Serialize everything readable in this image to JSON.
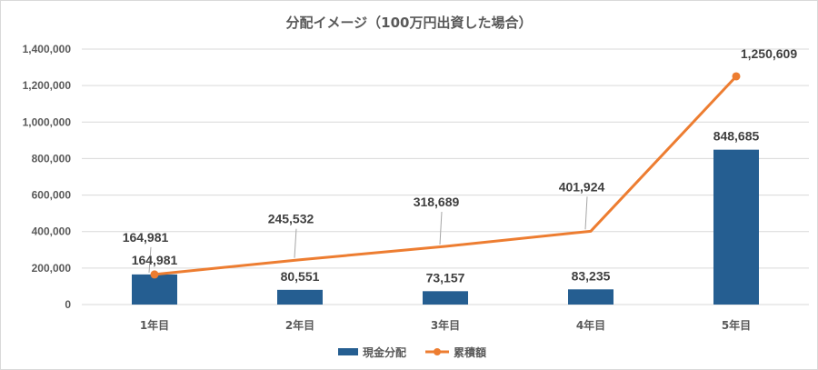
{
  "chart_data": {
    "type": "bar+line",
    "title": "分配イメージ（100万円出資した場合）",
    "categories": [
      "1年目",
      "2年目",
      "3年目",
      "4年目",
      "5年目"
    ],
    "series": [
      {
        "name": "現金分配",
        "type": "bar",
        "values": [
          164981,
          80551,
          73157,
          83235,
          848685
        ],
        "labels": [
          "164,981",
          "80,551",
          "73,157",
          "83,235",
          "848,685"
        ],
        "color": "#255e91"
      },
      {
        "name": "累積額",
        "type": "line",
        "values": [
          164981,
          245532,
          318689,
          401924,
          1250609
        ],
        "labels": [
          "164,981",
          "245,532",
          "318,689",
          "401,924",
          "1,250,609"
        ],
        "color": "#ed7d31"
      }
    ],
    "yticks": [
      "0",
      "200,000",
      "400,000",
      "600,000",
      "800,000",
      "1,000,000",
      "1,200,000",
      "1,400,000"
    ],
    "ylim": [
      0,
      1400000
    ],
    "grid": true,
    "legend_position": "bottom"
  }
}
